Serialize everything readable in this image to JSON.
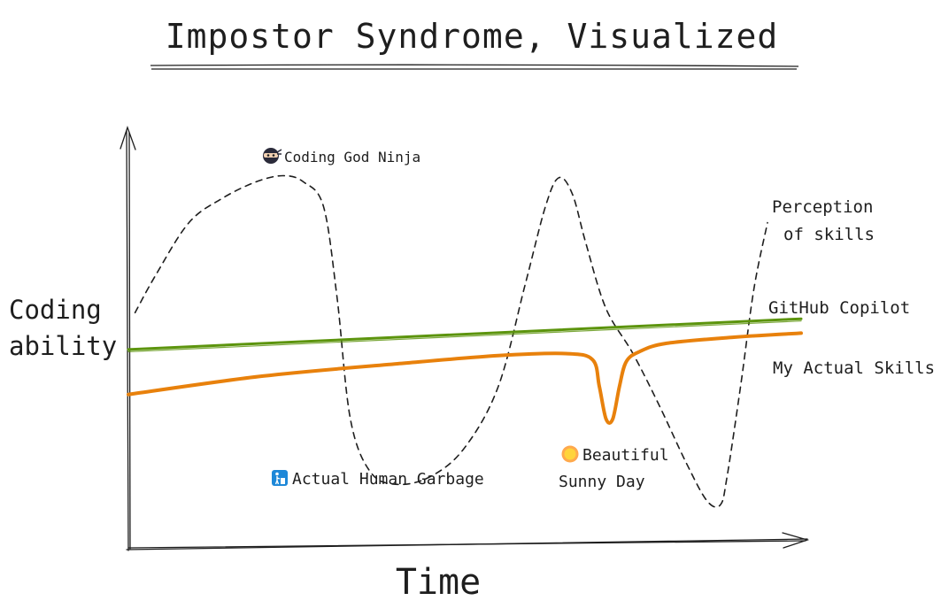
{
  "chart_data": {
    "type": "line",
    "title": "Impostor Syndrome, Visualized",
    "xlabel": "Time",
    "ylabel_lines": [
      "Coding",
      "ability"
    ],
    "x_range": [
      0,
      100
    ],
    "y_range": [
      0,
      100
    ],
    "grid": false,
    "series": [
      {
        "name": "Perception of skills",
        "label_lines": [
          "Perception",
          "of skills"
        ],
        "color": "#1e1e1e",
        "style": "dashed",
        "x": [
          1,
          4,
          9,
          14,
          19,
          23,
          26,
          29,
          31,
          33,
          36,
          40,
          45,
          50,
          55,
          59,
          62,
          64,
          66,
          68,
          71,
          75,
          79,
          83,
          86,
          88,
          89,
          91,
          93,
          95
        ],
        "y": [
          56,
          65,
          78,
          84,
          88,
          89.5,
          88,
          82,
          60,
          30,
          17,
          14,
          16,
          23,
          38,
          63,
          82,
          89,
          85,
          73,
          57,
          46,
          33,
          19,
          10,
          9,
          16,
          38,
          62,
          78
        ]
      },
      {
        "name": "GitHub Copilot",
        "color": "#5c940d",
        "style": "solid",
        "x": [
          0,
          100
        ],
        "y": [
          47,
          54.5
        ]
      },
      {
        "name": "My Actual Skills",
        "color": "#e8810c",
        "style": "solid",
        "x": [
          0,
          20,
          40,
          55,
          65,
          69,
          70,
          71,
          72,
          73,
          74,
          76,
          80,
          90,
          100
        ],
        "y": [
          36,
          40.5,
          43.5,
          45.5,
          46,
          44.5,
          38,
          30,
          30,
          38,
          44,
          46.5,
          48.5,
          50,
          51
        ]
      }
    ],
    "annotations": [
      {
        "icon": "ninja-icon",
        "text": "Coding God Ninja"
      },
      {
        "icon": "trash-icon",
        "text": "Actual Human Garbage"
      },
      {
        "icon": "sun-icon",
        "text_lines": [
          "Beautiful",
          "Sunny Day"
        ]
      }
    ]
  }
}
